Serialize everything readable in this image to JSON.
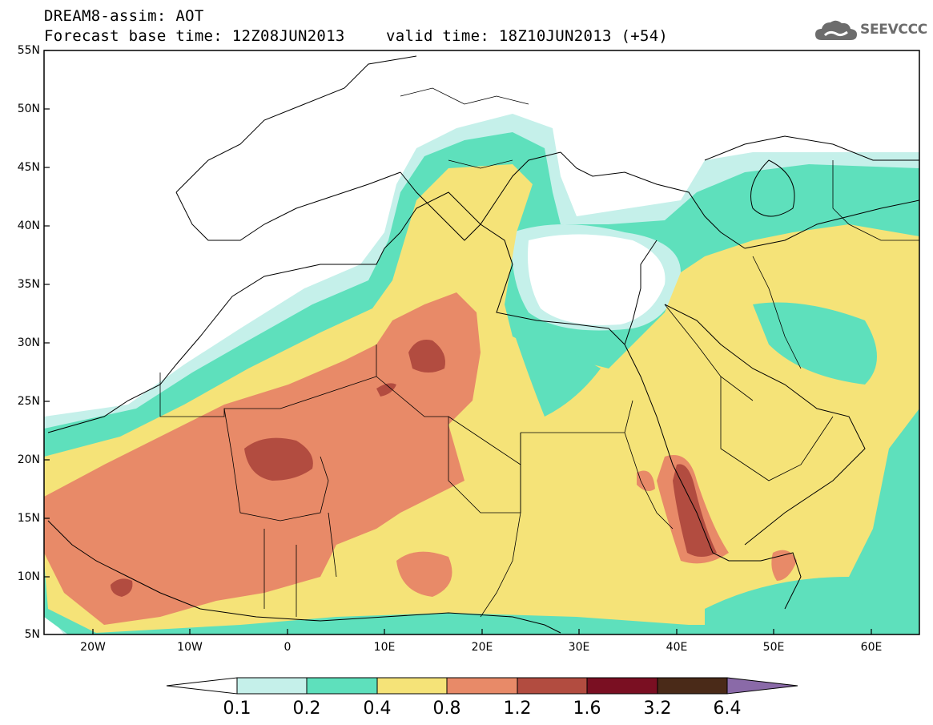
{
  "header": {
    "line1": "DREAM8-assim: AOT",
    "line2": "Forecast base time: 12Z08JUN2013",
    "valid": "valid time: 18Z10JUN2013 (+54)"
  },
  "logo": {
    "text": "SEEVCCC",
    "icon": "cloud-icon"
  },
  "axes": {
    "lat_labels": [
      "55N",
      "50N",
      "45N",
      "40N",
      "35N",
      "30N",
      "25N",
      "20N",
      "15N",
      "10N",
      "5N"
    ],
    "lon_labels": [
      "20W",
      "10W",
      "0",
      "10E",
      "20E",
      "30E",
      "40E",
      "50E",
      "60E"
    ]
  },
  "colorbar": {
    "labels": [
      "0.1",
      "0.2",
      "0.4",
      "0.8",
      "1.2",
      "1.6",
      "3.2",
      "6.4"
    ],
    "colors": [
      "#ffffff",
      "#c5f0ea",
      "#5ee0bc",
      "#f5e378",
      "#e88a68",
      "#b24c40",
      "#7a0f22",
      "#4a2a18",
      "#8a6aa8"
    ]
  }
}
